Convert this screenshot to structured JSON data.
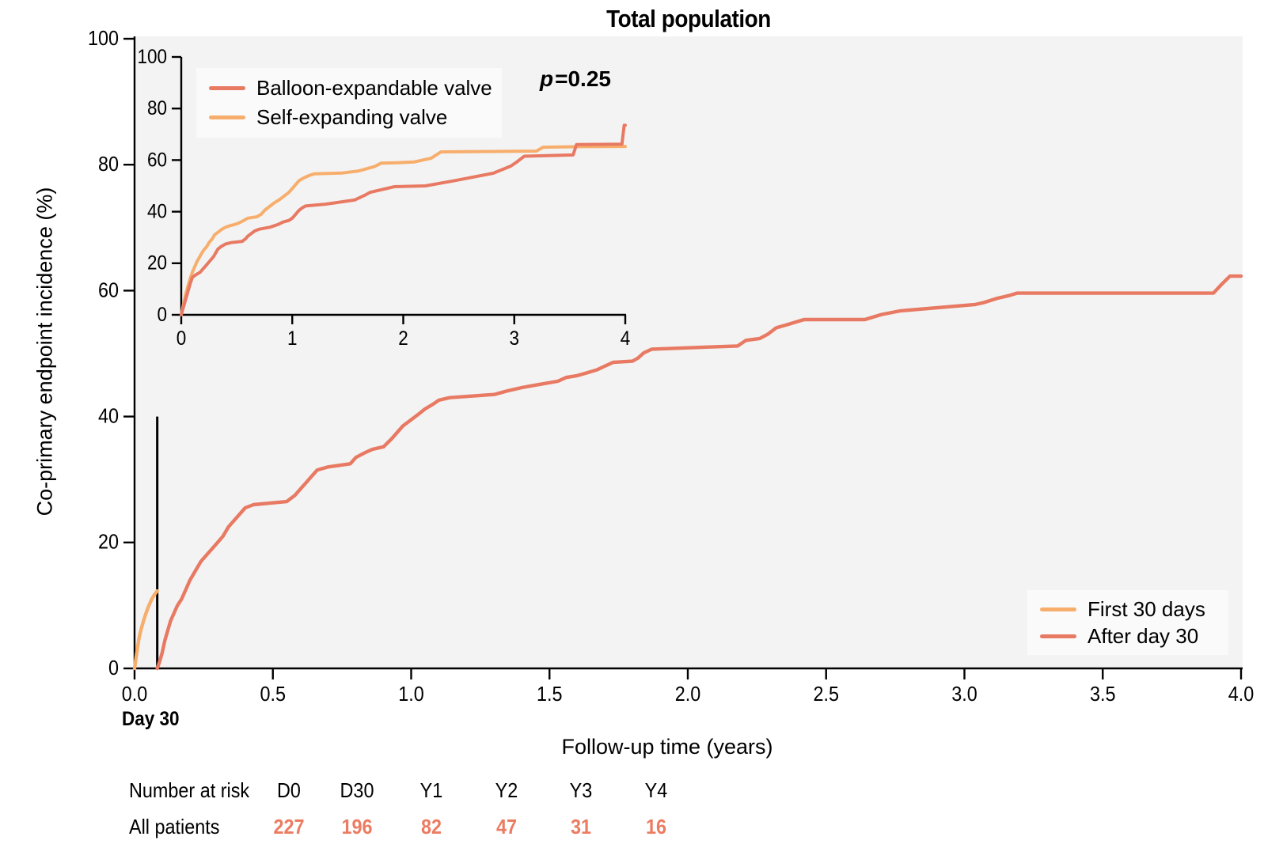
{
  "colors": {
    "salmon": "#e87962",
    "orange": "#f7ae6c",
    "axis": "#000000",
    "plot_background": "#f3f3f3",
    "legend_background": "#fafafa",
    "risk_value_color": "#ec7b61"
  },
  "chart_data": [
    {
      "id": "main",
      "type": "line",
      "title": "Total population",
      "xlabel": "Follow-up time (years)",
      "ylabel": "Co-primary endpoint incidence (%)",
      "xlim": [
        0,
        4
      ],
      "ylim": [
        0,
        100
      ],
      "grid": false,
      "x_ticks": [
        0,
        0.5,
        1,
        1.5,
        2,
        2.5,
        3,
        3.5,
        4
      ],
      "x_tick_labels": [
        "0.0",
        "0.5",
        "1.0",
        "1.5",
        "2.0",
        "2.5",
        "3.0",
        "3.5",
        "4.0"
      ],
      "y_ticks": [
        0,
        20,
        40,
        60,
        80,
        100
      ],
      "legend_position": "lower right",
      "annotations": {
        "day30_label": "Day 30",
        "day30_x_years": 0.082,
        "day30_vline_y_range": [
          0,
          40
        ]
      },
      "legend": [
        {
          "label": "First 30 days",
          "color": "#f7ae6c"
        },
        {
          "label": "After day 30",
          "color": "#e87962"
        }
      ],
      "series": [
        {
          "name": "First 30 days",
          "color": "#f7ae6c",
          "points": [
            [
              0,
              0
            ],
            [
              0.005,
              1.5
            ],
            [
              0.01,
              3
            ],
            [
              0.015,
              4.5
            ],
            [
              0.02,
              5.6
            ],
            [
              0.03,
              7.2
            ],
            [
              0.04,
              8.6
            ],
            [
              0.05,
              9.8
            ],
            [
              0.06,
              10.8
            ],
            [
              0.07,
              11.6
            ],
            [
              0.082,
              12.3
            ]
          ]
        },
        {
          "name": "After day 30",
          "color": "#e87962",
          "points": [
            [
              0.082,
              0
            ],
            [
              0.09,
              1
            ],
            [
              0.1,
              2.5
            ],
            [
              0.11,
              4.5
            ],
            [
              0.12,
              6
            ],
            [
              0.13,
              7.5
            ],
            [
              0.14,
              8.5
            ],
            [
              0.155,
              10
            ],
            [
              0.17,
              11
            ],
            [
              0.185,
              12.5
            ],
            [
              0.2,
              14
            ],
            [
              0.22,
              15.5
            ],
            [
              0.24,
              17
            ],
            [
              0.26,
              18
            ],
            [
              0.28,
              19
            ],
            [
              0.3,
              20
            ],
            [
              0.32,
              21
            ],
            [
              0.34,
              22.5
            ],
            [
              0.36,
              23.5
            ],
            [
              0.38,
              24.5
            ],
            [
              0.4,
              25.5
            ],
            [
              0.43,
              26
            ],
            [
              0.55,
              26.5
            ],
            [
              0.58,
              27.5
            ],
            [
              0.6,
              28.5
            ],
            [
              0.62,
              29.5
            ],
            [
              0.64,
              30.5
            ],
            [
              0.66,
              31.5
            ],
            [
              0.7,
              32
            ],
            [
              0.78,
              32.5
            ],
            [
              0.8,
              33.5
            ],
            [
              0.83,
              34.2
            ],
            [
              0.86,
              34.8
            ],
            [
              0.9,
              35.2
            ],
            [
              0.93,
              36.5
            ],
            [
              0.95,
              37.5
            ],
            [
              0.97,
              38.5
            ],
            [
              1,
              39.5
            ],
            [
              1.03,
              40.5
            ],
            [
              1.05,
              41.2
            ],
            [
              1.08,
              42
            ],
            [
              1.1,
              42.6
            ],
            [
              1.14,
              43
            ],
            [
              1.3,
              43.5
            ],
            [
              1.35,
              44.1
            ],
            [
              1.4,
              44.6
            ],
            [
              1.45,
              45
            ],
            [
              1.53,
              45.6
            ],
            [
              1.56,
              46.2
            ],
            [
              1.6,
              46.5
            ],
            [
              1.64,
              47
            ],
            [
              1.67,
              47.4
            ],
            [
              1.7,
              48
            ],
            [
              1.73,
              48.6
            ],
            [
              1.8,
              48.8
            ],
            [
              1.82,
              49.3
            ],
            [
              1.84,
              50.1
            ],
            [
              1.87,
              50.7
            ],
            [
              2.18,
              51.2
            ],
            [
              2.21,
              52.1
            ],
            [
              2.26,
              52.4
            ],
            [
              2.29,
              53.1
            ],
            [
              2.32,
              54.1
            ],
            [
              2.36,
              54.6
            ],
            [
              2.42,
              55.4
            ],
            [
              2.64,
              55.4
            ],
            [
              2.7,
              56.2
            ],
            [
              2.77,
              56.8
            ],
            [
              3.04,
              57.8
            ],
            [
              3.07,
              58.1
            ],
            [
              3.12,
              58.8
            ],
            [
              3.16,
              59.2
            ],
            [
              3.19,
              59.6
            ],
            [
              3.9,
              59.6
            ],
            [
              3.93,
              61
            ],
            [
              3.96,
              62.3
            ],
            [
              4,
              62.3
            ]
          ]
        }
      ]
    },
    {
      "id": "inset",
      "type": "line",
      "xlim": [
        0,
        4
      ],
      "ylim": [
        0,
        100
      ],
      "grid": false,
      "x_ticks": [
        0,
        1,
        2,
        3,
        4
      ],
      "x_tick_labels": [
        "0",
        "1",
        "2",
        "3",
        "4"
      ],
      "y_ticks": [
        0,
        20,
        40,
        60,
        80,
        100
      ],
      "p_label": {
        "italic": "p",
        "rest": "=0.25"
      },
      "legend": [
        {
          "label": "Balloon-expandable valve",
          "color": "#e87962"
        },
        {
          "label": "Self-expanding valve",
          "color": "#f7ae6c"
        }
      ],
      "series": [
        {
          "name": "Self-expanding valve",
          "color": "#f7ae6c",
          "points": [
            [
              0,
              0
            ],
            [
              0.02,
              4
            ],
            [
              0.04,
              8
            ],
            [
              0.06,
              11
            ],
            [
              0.08,
              14
            ],
            [
              0.1,
              16.5
            ],
            [
              0.12,
              18.5
            ],
            [
              0.14,
              20.5
            ],
            [
              0.16,
              22
            ],
            [
              0.18,
              23.5
            ],
            [
              0.2,
              25
            ],
            [
              0.23,
              26.5
            ],
            [
              0.25,
              28
            ],
            [
              0.28,
              29.5
            ],
            [
              0.3,
              31
            ],
            [
              0.33,
              32
            ],
            [
              0.36,
              33
            ],
            [
              0.4,
              34
            ],
            [
              0.44,
              34.6
            ],
            [
              0.48,
              35
            ],
            [
              0.52,
              35.6
            ],
            [
              0.56,
              36.5
            ],
            [
              0.6,
              37.5
            ],
            [
              0.68,
              38
            ],
            [
              0.72,
              39
            ],
            [
              0.75,
              40.5
            ],
            [
              0.78,
              41.5
            ],
            [
              0.81,
              42.5
            ],
            [
              0.84,
              43.5
            ],
            [
              0.88,
              44.5
            ],
            [
              0.91,
              45.5
            ],
            [
              0.94,
              46.5
            ],
            [
              0.97,
              47.5
            ],
            [
              1,
              49
            ],
            [
              1.03,
              50.5
            ],
            [
              1.06,
              52
            ],
            [
              1.1,
              53
            ],
            [
              1.15,
              54
            ],
            [
              1.2,
              54.7
            ],
            [
              1.45,
              55
            ],
            [
              1.6,
              55.8
            ],
            [
              1.74,
              57.5
            ],
            [
              1.8,
              58.8
            ],
            [
              1.95,
              59
            ],
            [
              2.1,
              59.3
            ],
            [
              2.25,
              60.7
            ],
            [
              2.34,
              63.2
            ],
            [
              3.2,
              63.5
            ],
            [
              3.26,
              65
            ],
            [
              3.6,
              65.2
            ],
            [
              4,
              65.3
            ]
          ]
        },
        {
          "name": "Balloon-expandable valve",
          "color": "#e87962",
          "points": [
            [
              0,
              0
            ],
            [
              0.02,
              3
            ],
            [
              0.04,
              6
            ],
            [
              0.06,
              9
            ],
            [
              0.08,
              12
            ],
            [
              0.1,
              14.5
            ],
            [
              0.13,
              15.5
            ],
            [
              0.17,
              16.5
            ],
            [
              0.2,
              18
            ],
            [
              0.23,
              19.5
            ],
            [
              0.26,
              21
            ],
            [
              0.29,
              22.5
            ],
            [
              0.31,
              24
            ],
            [
              0.33,
              25.5
            ],
            [
              0.36,
              26.5
            ],
            [
              0.4,
              27.5
            ],
            [
              0.45,
              28
            ],
            [
              0.55,
              28.5
            ],
            [
              0.58,
              29.5
            ],
            [
              0.6,
              30.5
            ],
            [
              0.63,
              31.5
            ],
            [
              0.66,
              32.5
            ],
            [
              0.7,
              33.2
            ],
            [
              0.8,
              34
            ],
            [
              0.87,
              35
            ],
            [
              0.92,
              36
            ],
            [
              0.97,
              36.6
            ],
            [
              1,
              37.5
            ],
            [
              1.03,
              39
            ],
            [
              1.06,
              40.5
            ],
            [
              1.09,
              41.5
            ],
            [
              1.12,
              42.2
            ],
            [
              1.3,
              42.9
            ],
            [
              1.56,
              44.5
            ],
            [
              1.65,
              46.3
            ],
            [
              1.7,
              47.5
            ],
            [
              1.92,
              49.7
            ],
            [
              2.2,
              50
            ],
            [
              2.47,
              52.1
            ],
            [
              2.81,
              54.9
            ],
            [
              2.97,
              57.7
            ],
            [
              3.02,
              59.2
            ],
            [
              3.09,
              61.5
            ],
            [
              3.53,
              62
            ],
            [
              3.56,
              66
            ],
            [
              3.97,
              66.2
            ],
            [
              3.99,
              73.5
            ],
            [
              4,
              73.5
            ]
          ]
        }
      ]
    }
  ],
  "risk_table": {
    "header_label": "Number at risk",
    "columns": [
      "D0",
      "D30",
      "Y1",
      "Y2",
      "Y3",
      "Y4"
    ],
    "rows": [
      {
        "label": "All patients",
        "values": [
          "227",
          "196",
          "82",
          "47",
          "31",
          "16"
        ]
      }
    ]
  }
}
